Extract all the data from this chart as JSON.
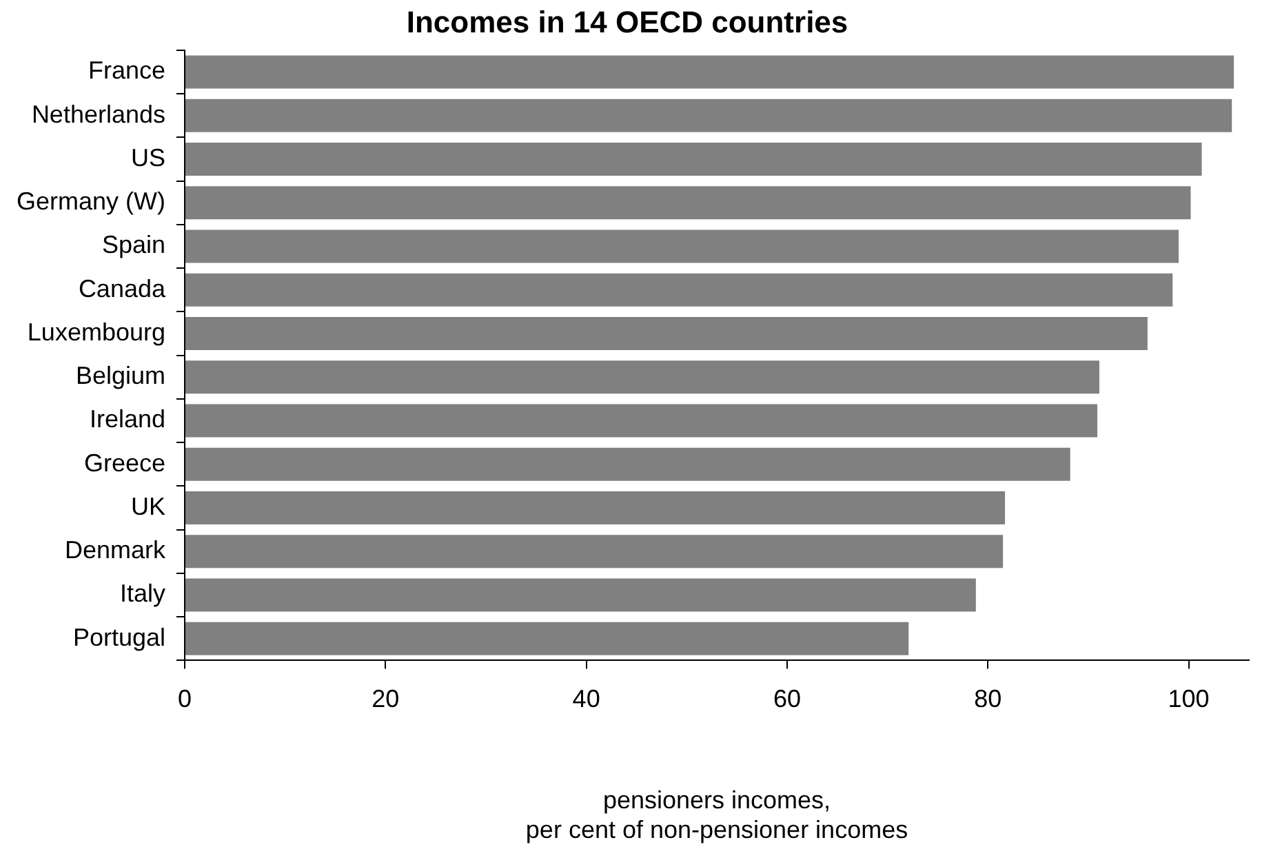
{
  "chart_data": {
    "type": "bar",
    "orientation": "horizontal",
    "title": "Incomes in 14 OECD countries",
    "xlabel": "pensioners incomes,\nper cent of non-pensioner incomes",
    "categories": [
      "France",
      "Netherlands",
      "US",
      "Germany (W)",
      "Spain",
      "Canada",
      "Luxembourg",
      "Belgium",
      "Ireland",
      "Greece",
      "UK",
      "Denmark",
      "Italy",
      "Portugal"
    ],
    "values": [
      104.5,
      104.3,
      101.3,
      100.2,
      99.0,
      98.4,
      95.9,
      91.1,
      90.9,
      88.2,
      81.7,
      81.5,
      78.8,
      72.1
    ],
    "color": "#808080",
    "xlim": [
      0,
      106
    ],
    "xticks": [
      0,
      20,
      40,
      60,
      80,
      100
    ],
    "grid": false,
    "legend": false
  }
}
